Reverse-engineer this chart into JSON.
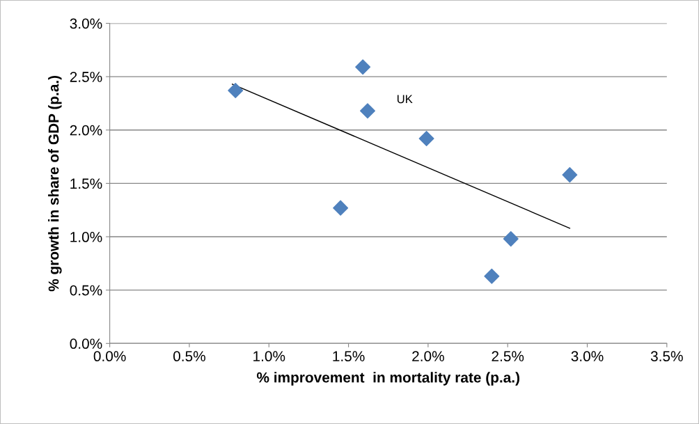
{
  "chart_data": {
    "type": "scatter",
    "xlabel": "% improvement  in mortality rate (p.a.)",
    "ylabel": "% growth in share of GDP (p.a.)",
    "series": [
      {
        "marker": "diamond",
        "color": "#4f81bd",
        "x": [
          0.79,
          1.59,
          1.62,
          1.99,
          1.45,
          2.89,
          2.52,
          2.4
        ],
        "values": [
          2.37,
          2.59,
          2.18,
          1.92,
          1.27,
          1.58,
          0.98,
          0.63
        ]
      },
      {
        "type": "line",
        "color": "#000000",
        "x": [
          0.77,
          2.89
        ],
        "values": [
          2.43,
          1.08
        ]
      }
    ],
    "annotations": [
      {
        "text": "UK",
        "x": 1.62,
        "y": 2.18
      }
    ],
    "grid": "y",
    "legend": false,
    "xlim": [
      0,
      3.5
    ],
    "xticks": [
      {
        "value": 0,
        "label": "0.0%"
      },
      {
        "value": 0.5,
        "label": "0.5%"
      },
      {
        "value": 1.0,
        "label": "1.0%"
      },
      {
        "value": 1.5,
        "label": "1.5%"
      },
      {
        "value": 2.0,
        "label": "2.0%"
      },
      {
        "value": 2.5,
        "label": "2.5%"
      },
      {
        "value": 3.0,
        "label": "3.0%"
      },
      {
        "value": 3.5,
        "label": "3.5%"
      }
    ],
    "ylim": [
      0,
      3.0
    ],
    "yticks": [
      {
        "value": 0,
        "label": "0.0%"
      },
      {
        "value": 0.5,
        "label": "0.5%"
      },
      {
        "value": 1.0,
        "label": "1.0%"
      },
      {
        "value": 1.5,
        "label": "1.5%"
      },
      {
        "value": 2.0,
        "label": "2.0%"
      },
      {
        "value": 2.5,
        "label": "2.5%"
      },
      {
        "value": 3.0,
        "label": "3.0%"
      }
    ]
  }
}
